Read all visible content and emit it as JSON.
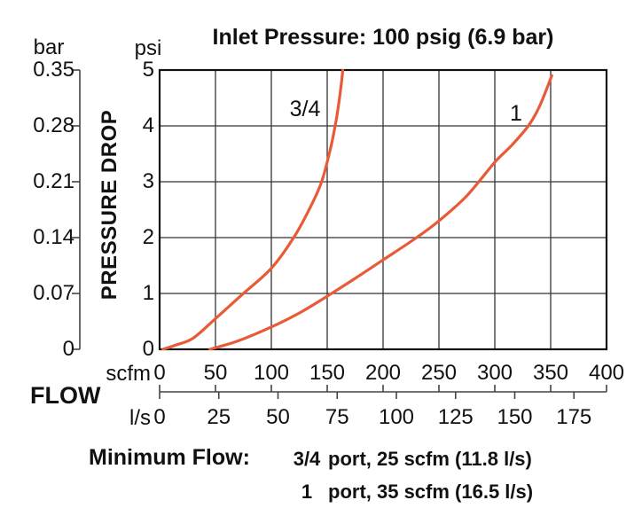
{
  "title": "Inlet Pressure: 100 psig (6.9 bar)",
  "labels": {
    "bar_unit": "bar",
    "psi_unit": "psi",
    "scfm_unit": "scfm",
    "lps_unit": "l/s",
    "flow": "FLOW",
    "pressure_drop": "PRESSURE DROP"
  },
  "chart_data": {
    "type": "line",
    "title": "Inlet Pressure: 100 psig (6.9 bar)",
    "xlabel": "FLOW (scfm)",
    "x2label": "FLOW (l/s)",
    "ylabel": "PRESSURE DROP (psi)",
    "y2label": "PRESSURE DROP (bar)",
    "xlim": [
      0,
      400
    ],
    "ylim": [
      0,
      5
    ],
    "grid": true,
    "x_ticks_scfm": [
      0,
      50,
      100,
      150,
      200,
      250,
      300,
      350,
      400
    ],
    "x_ticks_lps": [
      0,
      25,
      50,
      75,
      100,
      125,
      150,
      175
    ],
    "y_ticks_psi": [
      5,
      4,
      3,
      2,
      1,
      0
    ],
    "y_ticks_bar": [
      "0.35",
      "0.28",
      "0.21",
      "0.14",
      "0.07",
      "0"
    ],
    "series": [
      {
        "name": "3/4",
        "points_scfm_psi": [
          [
            3,
            0
          ],
          [
            15,
            0.08
          ],
          [
            30,
            0.2
          ],
          [
            50,
            0.55
          ],
          [
            75,
            1.0
          ],
          [
            100,
            1.45
          ],
          [
            120,
            2.0
          ],
          [
            135,
            2.55
          ],
          [
            145,
            3.0
          ],
          [
            153,
            3.6
          ],
          [
            158,
            4.1
          ],
          [
            162,
            4.65
          ],
          [
            164,
            5.0
          ]
        ]
      },
      {
        "name": "1",
        "points_scfm_psi": [
          [
            45,
            0
          ],
          [
            70,
            0.15
          ],
          [
            100,
            0.4
          ],
          [
            125,
            0.65
          ],
          [
            150,
            0.95
          ],
          [
            175,
            1.27
          ],
          [
            200,
            1.6
          ],
          [
            230,
            2.0
          ],
          [
            250,
            2.3
          ],
          [
            275,
            2.75
          ],
          [
            300,
            3.35
          ],
          [
            315,
            3.65
          ],
          [
            330,
            4.0
          ],
          [
            340,
            4.35
          ],
          [
            351,
            4.9
          ]
        ]
      }
    ]
  },
  "footnote": {
    "label": "Minimum Flow:",
    "rows": [
      {
        "port": "3/4",
        "text": "port, 25 scfm (11.8 l/s)"
      },
      {
        "port": "1",
        "text": "port, 35 scfm (16.5 l/s)"
      }
    ]
  },
  "colors": {
    "curve": "#e85a38",
    "grid": "#333333",
    "border": "#111111",
    "axis": "#444444",
    "text": "#111111"
  }
}
